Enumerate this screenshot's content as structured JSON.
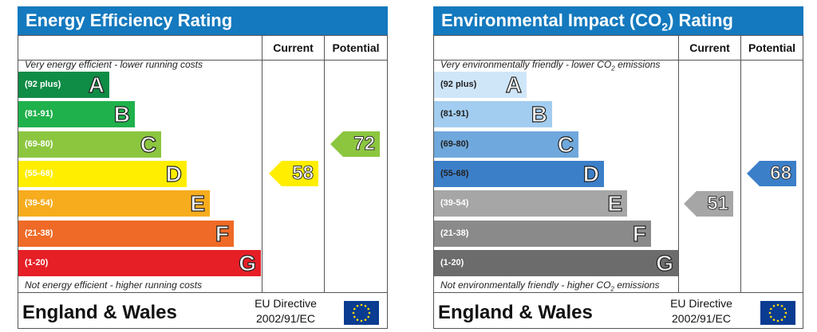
{
  "chart_data": [
    {
      "type": "bar",
      "title": "Energy Efficiency Rating",
      "columns": [
        "Current",
        "Potential"
      ],
      "top_caption": "Very energy efficient - lower running costs",
      "bottom_caption": "Not energy efficient - higher running costs",
      "bands": [
        {
          "range": "(92 plus)",
          "letter": "A",
          "color": "#0f8c45"
        },
        {
          "range": "(81-91)",
          "letter": "B",
          "color": "#1fb14b"
        },
        {
          "range": "(69-80)",
          "letter": "C",
          "color": "#8cc63f"
        },
        {
          "range": "(55-68)",
          "letter": "D",
          "color": "#ffee00"
        },
        {
          "range": "(39-54)",
          "letter": "E",
          "color": "#f7ac1e"
        },
        {
          "range": "(21-38)",
          "letter": "F",
          "color": "#ef6a26"
        },
        {
          "range": "(1-20)",
          "letter": "G",
          "color": "#e61f27"
        }
      ],
      "current": {
        "value": "58",
        "band": "D",
        "color": "#ffee00"
      },
      "potential": {
        "value": "72",
        "band": "C",
        "color": "#8cc63f"
      },
      "footer": {
        "country": "England & Wales",
        "directive_line1": "EU Directive",
        "directive_line2": "2002/91/EC"
      }
    },
    {
      "type": "bar",
      "title_pre": "Environmental Impact (CO",
      "title_sub": "2",
      "title_post": ") Rating",
      "columns": [
        "Current",
        "Potential"
      ],
      "top_caption_pre": "Very environmentally friendly - lower CO",
      "top_caption_sub": "2",
      "top_caption_post": " emissions",
      "bottom_caption_pre": "Not environmentally friendly - higher CO",
      "bottom_caption_sub": "2",
      "bottom_caption_post": " emissions",
      "bands": [
        {
          "range": "(92 plus)",
          "letter": "A",
          "color": "#cfe6f9"
        },
        {
          "range": "(81-91)",
          "letter": "B",
          "color": "#a3cdf0"
        },
        {
          "range": "(69-80)",
          "letter": "C",
          "color": "#6fa8dc"
        },
        {
          "range": "(55-68)",
          "letter": "D",
          "color": "#3c7fc9"
        },
        {
          "range": "(39-54)",
          "letter": "E",
          "color": "#a6a6a6"
        },
        {
          "range": "(21-38)",
          "letter": "F",
          "color": "#8a8a8a"
        },
        {
          "range": "(1-20)",
          "letter": "G",
          "color": "#6c6c6c"
        }
      ],
      "current": {
        "value": "51",
        "band": "E",
        "color": "#a6a6a6"
      },
      "potential": {
        "value": "68",
        "band": "D",
        "color": "#3c7fc9"
      },
      "footer": {
        "country": "England & Wales",
        "directive_line1": "EU Directive",
        "directive_line2": "2002/91/EC"
      }
    }
  ]
}
